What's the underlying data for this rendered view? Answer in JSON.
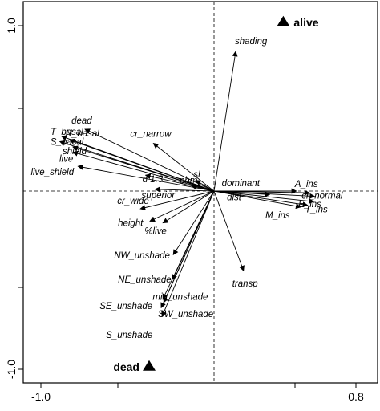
{
  "chart_data": {
    "type": "scatter",
    "title": "",
    "xlabel": "",
    "ylabel": "",
    "xlim": [
      -1.0,
      0.8
    ],
    "ylim": [
      -1.0,
      1.0
    ],
    "x_tick_labels": [
      "-1.0",
      "0.8"
    ],
    "y_tick_labels": [
      "1.0",
      "-1.0"
    ],
    "grid": false,
    "reference_lines": "dashed lines at x = 0 and y = 0",
    "vectors": [
      {
        "label": "shading",
        "x": 0.25,
        "y": 0.79
      },
      {
        "label": "dead",
        "x": -1.49,
        "y": 0.35
      },
      {
        "label": "T_basal",
        "x": -1.76,
        "y": 0.31
      },
      {
        "label": "N_basal",
        "x": -1.67,
        "y": 0.29
      },
      {
        "label": "S_basal",
        "x": -1.78,
        "y": 0.28
      },
      {
        "label": "shield",
        "x": -1.63,
        "y": 0.25
      },
      {
        "label": "live",
        "x": -1.63,
        "y": 0.22
      },
      {
        "label": "live_shield",
        "x": -1.57,
        "y": 0.14
      },
      {
        "label": "cr_narrow",
        "x": -0.7,
        "y": 0.27
      },
      {
        "label": "d 1.3",
        "x": -0.79,
        "y": 0.09
      },
      {
        "label": "sl",
        "x": -0.21,
        "y": 0.06
      },
      {
        "label": "phm",
        "x": -0.26,
        "y": 0.03
      },
      {
        "label": "superior",
        "x": -0.68,
        "y": 0.01
      },
      {
        "label": "cr_wide",
        "x": -0.85,
        "y": -0.1
      },
      {
        "label": "height",
        "x": -0.74,
        "y": -0.17
      },
      {
        "label": "%live",
        "x": -0.59,
        "y": -0.18
      },
      {
        "label": "NW_unshade",
        "x": -0.47,
        "y": -0.36
      },
      {
        "label": "NE_unshade",
        "x": -0.48,
        "y": -0.5
      },
      {
        "label": "SE_unshade",
        "x": -0.59,
        "y": -0.61
      },
      {
        "label": "S_unshade",
        "x": -0.6,
        "y": -0.71
      },
      {
        "label": "min_unshade",
        "x": -0.58,
        "y": -0.63
      },
      {
        "label": "SW_unshade",
        "x": -0.61,
        "y": -0.66
      },
      {
        "label": "transp",
        "x": 0.34,
        "y": -0.45
      },
      {
        "label": "dominant",
        "x": 0.95,
        "y": 0.0
      },
      {
        "label": "dist",
        "x": 0.64,
        "y": -0.02
      },
      {
        "label": "A_ins",
        "x": 1.1,
        "y": -0.01
      },
      {
        "label": "cr_normal",
        "x": 1.16,
        "y": -0.03
      },
      {
        "label": "E_ins",
        "x": 1.15,
        "y": -0.06
      },
      {
        "label": "M_ins",
        "x": 1.0,
        "y": -0.09
      },
      {
        "label": "T_ins",
        "x": 1.08,
        "y": -0.08
      }
    ],
    "points": [
      {
        "label": "alive",
        "x": 0.8,
        "y": 0.96,
        "marker": "triangle"
      },
      {
        "label": "dead",
        "x": -0.75,
        "y": -0.99,
        "marker": "triangle"
      }
    ]
  }
}
